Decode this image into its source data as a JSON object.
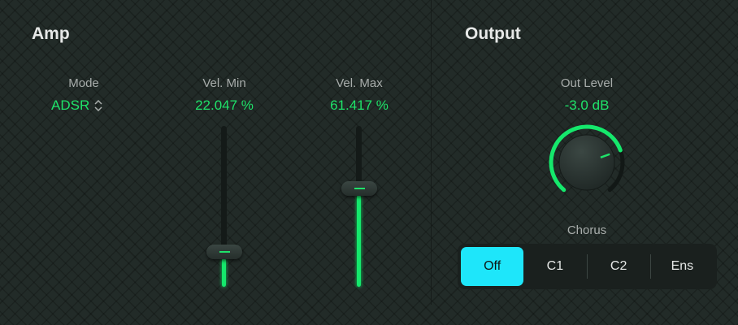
{
  "amp": {
    "title": "Amp",
    "mode": {
      "label": "Mode",
      "value": "ADSR",
      "icon": "up-down-chevron-icon"
    },
    "vel_min": {
      "label": "Vel. Min",
      "value": "22.047 %",
      "fraction": 0.22047
    },
    "vel_max": {
      "label": "Vel. Max",
      "value": "61.417 %",
      "fraction": 0.61417
    }
  },
  "output": {
    "title": "Output",
    "out_level": {
      "label": "Out Level",
      "value": "-3.0 dB",
      "knob_fraction": 0.75
    },
    "chorus": {
      "label": "Chorus",
      "options": [
        "Off",
        "C1",
        "C2",
        "Ens"
      ],
      "selected": "Off"
    }
  },
  "colors": {
    "accent": "#1fe36a",
    "selected": "#1ee6fa"
  }
}
